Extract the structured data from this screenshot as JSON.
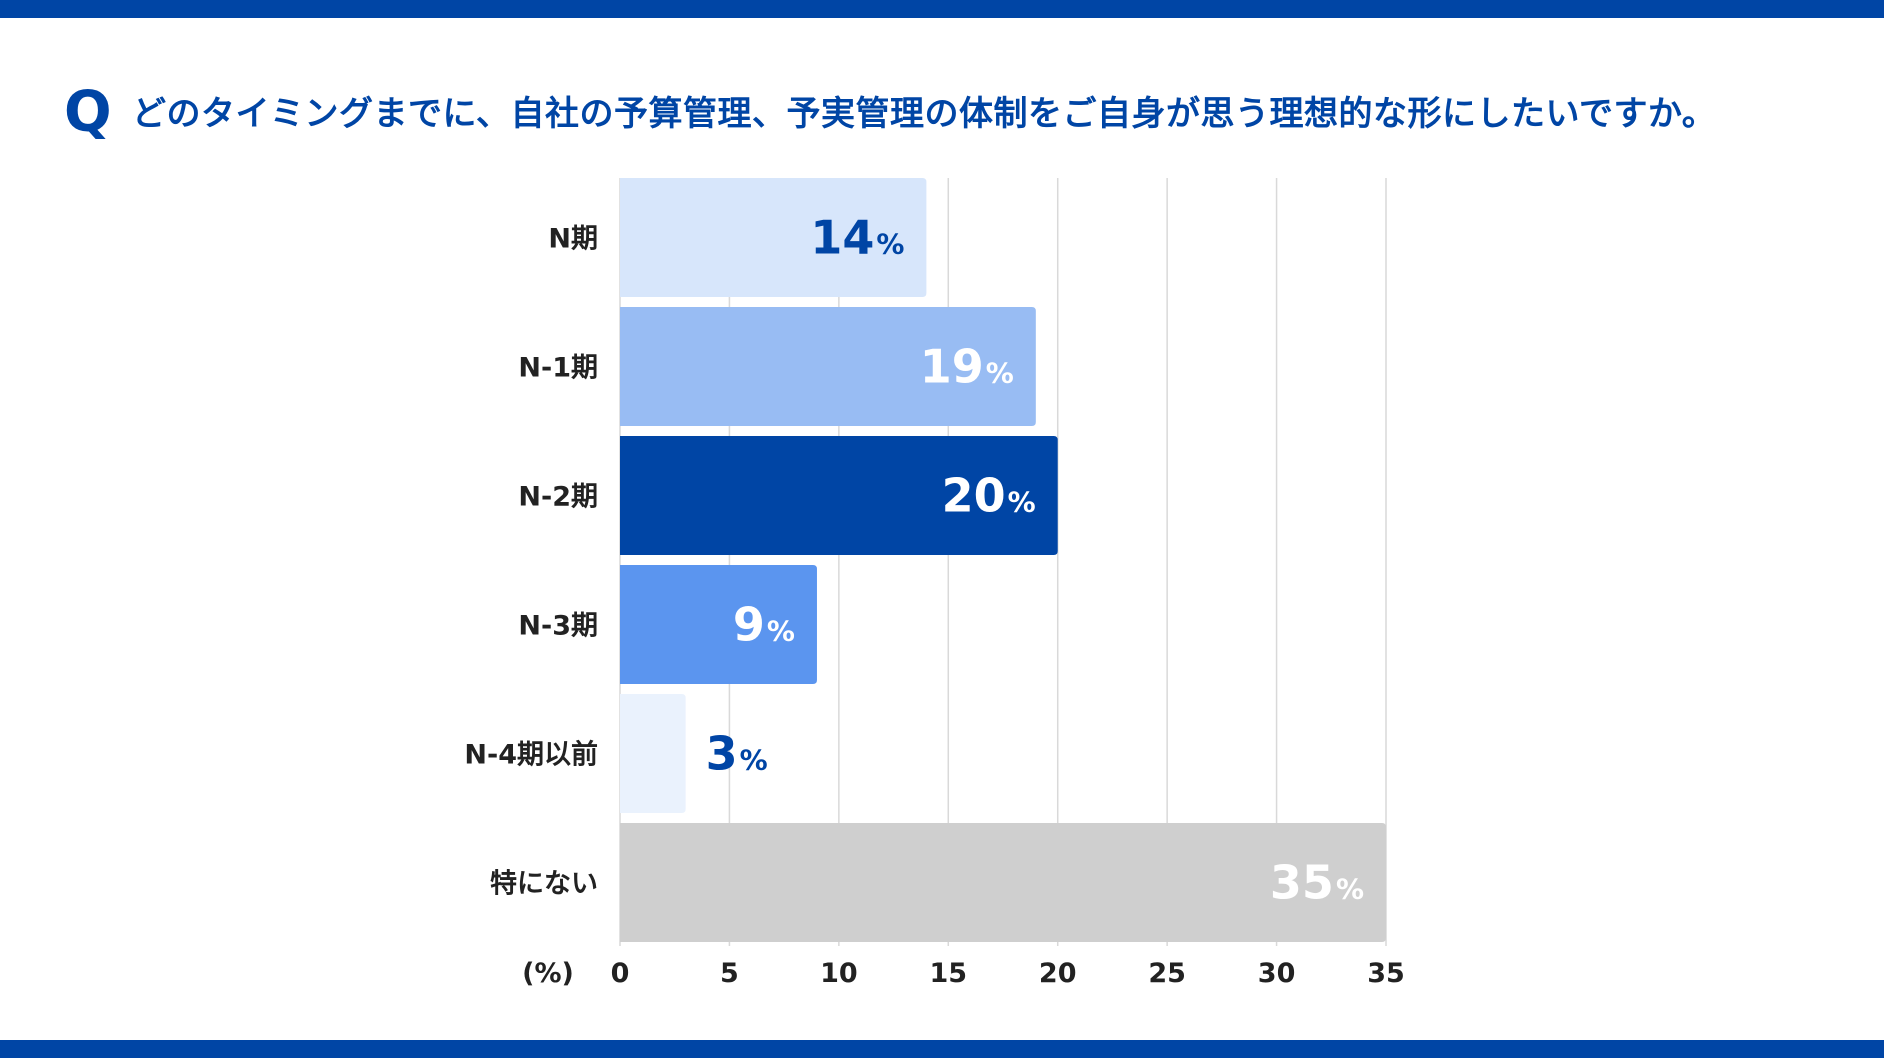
{
  "header": {
    "q_mark": "Q",
    "question": "どのタイミングまでに、自社の予算管理、予実管理の体制をご自身が思う理想的な形にしたいですか。"
  },
  "colors": {
    "brand": "#0045a5",
    "grid": "#d9d9d9",
    "label_text": "#222222"
  },
  "chart_data": {
    "type": "bar",
    "orientation": "horizontal",
    "categories": [
      "N期",
      "N-1期",
      "N-2期",
      "N-3期",
      "N-4期以前",
      "特にない"
    ],
    "values": [
      14,
      19,
      20,
      9,
      3,
      35
    ],
    "value_labels": [
      "14",
      "19",
      "20",
      "9",
      "3",
      "35"
    ],
    "value_unit": "%",
    "bar_colors": [
      "#d7e6fb",
      "#98bcf3",
      "#0045a5",
      "#5b95ef",
      "#eaf2fd",
      "#cfcfcf"
    ],
    "value_label_colors": [
      "#0045a5",
      "#ffffff",
      "#ffffff",
      "#ffffff",
      "#0045a5",
      "#ffffff"
    ],
    "value_label_position": [
      "inside",
      "inside",
      "inside",
      "inside",
      "outside",
      "inside"
    ],
    "xlim": [
      0,
      35
    ],
    "xticks": [
      0,
      5,
      10,
      15,
      20,
      25,
      30,
      35
    ],
    "xlabel": "(%)",
    "grid": true
  }
}
